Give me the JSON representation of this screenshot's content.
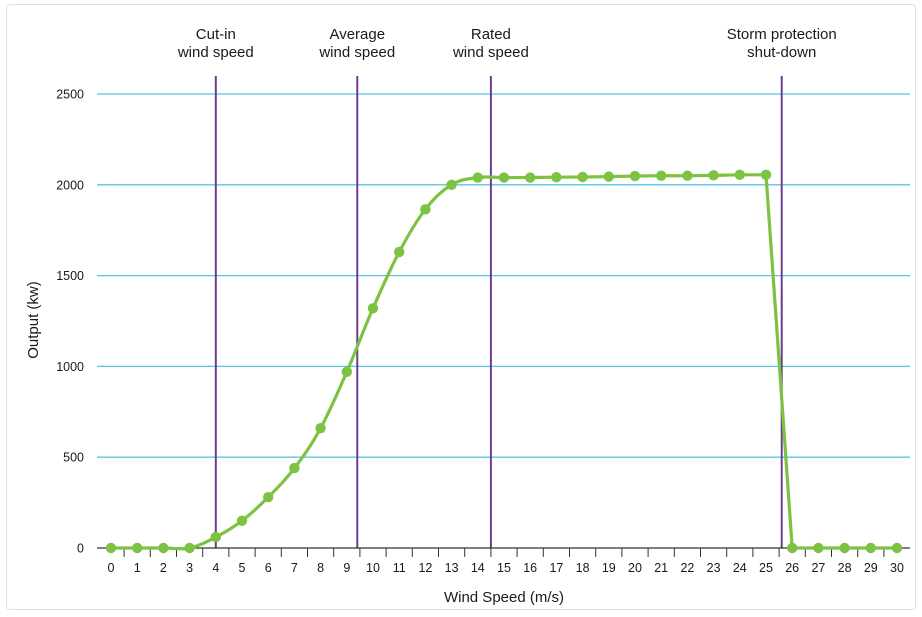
{
  "chart_data": {
    "type": "line",
    "title": "",
    "xlabel": "Wind Speed (m/s)",
    "ylabel": "Output (kw)",
    "xlim": [
      0,
      30
    ],
    "ylim": [
      0,
      2500
    ],
    "x_ticks": [
      0,
      1,
      2,
      3,
      4,
      5,
      6,
      7,
      8,
      9,
      10,
      11,
      12,
      13,
      14,
      15,
      16,
      17,
      18,
      19,
      20,
      21,
      22,
      23,
      24,
      25,
      26,
      27,
      28,
      29,
      30
    ],
    "y_ticks": [
      0,
      500,
      1000,
      1500,
      2000,
      2500
    ],
    "grid": "horizontal",
    "series": [
      {
        "color": "#7dc242",
        "points": [
          [
            0,
            0
          ],
          [
            1,
            0
          ],
          [
            2,
            0
          ],
          [
            3,
            0
          ],
          [
            4,
            60
          ],
          [
            5,
            150
          ],
          [
            6,
            280
          ],
          [
            7,
            440
          ],
          [
            8,
            660
          ],
          [
            9,
            970
          ],
          [
            10,
            1320
          ],
          [
            11,
            1630
          ],
          [
            12,
            1865
          ],
          [
            13,
            2000
          ],
          [
            14,
            2040
          ],
          [
            15,
            2040
          ],
          [
            16,
            2040
          ],
          [
            17,
            2042
          ],
          [
            18,
            2043
          ],
          [
            19,
            2045
          ],
          [
            20,
            2048
          ],
          [
            21,
            2050
          ],
          [
            22,
            2050
          ],
          [
            23,
            2052
          ],
          [
            24,
            2055
          ],
          [
            25,
            2055
          ],
          [
            26,
            0
          ],
          [
            27,
            0
          ],
          [
            28,
            0
          ],
          [
            29,
            0
          ],
          [
            30,
            0
          ]
        ]
      }
    ],
    "annotations": [
      {
        "x": 4,
        "lines": [
          "Cut-in",
          "wind speed"
        ]
      },
      {
        "x": 9.4,
        "lines": [
          "Average",
          "wind speed"
        ]
      },
      {
        "x": 14.5,
        "lines": [
          "Rated",
          "wind speed"
        ]
      },
      {
        "x": 25.6,
        "lines": [
          "Storm protection",
          "shut-down"
        ]
      }
    ],
    "colors": {
      "grid": "#5bc4e0",
      "vline": "#6a3d8f",
      "axis": "#333333"
    }
  }
}
